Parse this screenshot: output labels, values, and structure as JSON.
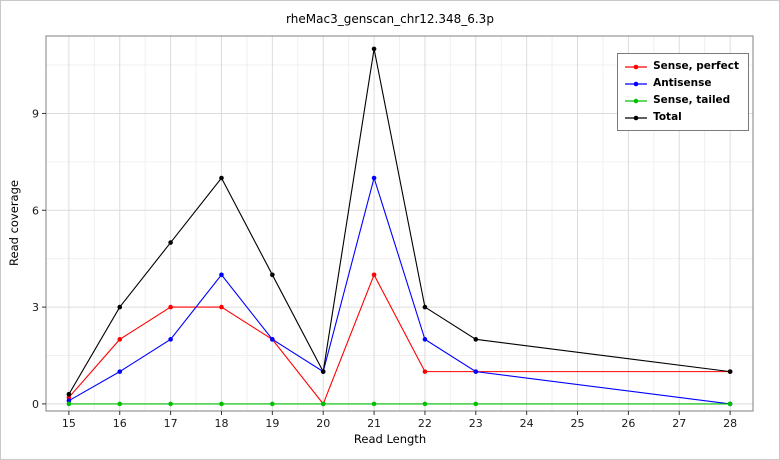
{
  "chart_data": {
    "type": "line",
    "title": "rheMac3_genscan_chr12.348_6.3p",
    "xlabel": "Read Length",
    "ylabel": "Read coverage",
    "x_ticks": [
      15,
      16,
      17,
      18,
      19,
      20,
      21,
      22,
      23,
      24,
      25,
      26,
      27,
      28
    ],
    "y_ticks": [
      0,
      3,
      6,
      9
    ],
    "xlim": [
      14.55,
      28.45
    ],
    "ylim": [
      -0.22,
      11.4
    ],
    "grid": true,
    "legend_position": "top-right",
    "colors": {
      "grid_major": "#dcdcdc",
      "grid_minor": "#f0f0f0",
      "panel_border": "#808080",
      "tick": "#333333",
      "tick_label": "#1a1a1a",
      "background": "#ffffff"
    },
    "series": [
      {
        "name": "Sense, perfect",
        "color": "#ff0000",
        "x": [
          15,
          16,
          17,
          18,
          19,
          20,
          21,
          22,
          23,
          28
        ],
        "y": [
          0.2,
          2,
          3,
          3,
          2,
          0,
          4,
          1,
          1,
          1
        ]
      },
      {
        "name": "Antisense",
        "color": "#0000ff",
        "x": [
          15,
          16,
          17,
          18,
          19,
          20,
          21,
          22,
          23,
          28
        ],
        "y": [
          0.1,
          1,
          2,
          4,
          2,
          1,
          7,
          2,
          1,
          0
        ]
      },
      {
        "name": "Sense, tailed",
        "color": "#00c000",
        "x": [
          15,
          16,
          17,
          18,
          19,
          20,
          21,
          22,
          23,
          28
        ],
        "y": [
          0,
          0,
          0,
          0,
          0,
          0,
          0,
          0,
          0,
          0
        ]
      },
      {
        "name": "Total",
        "color": "#000000",
        "x": [
          15,
          16,
          17,
          18,
          19,
          20,
          21,
          22,
          23,
          28
        ],
        "y": [
          0.3,
          3,
          5,
          7,
          4,
          1,
          11,
          3,
          2,
          1
        ]
      }
    ]
  }
}
